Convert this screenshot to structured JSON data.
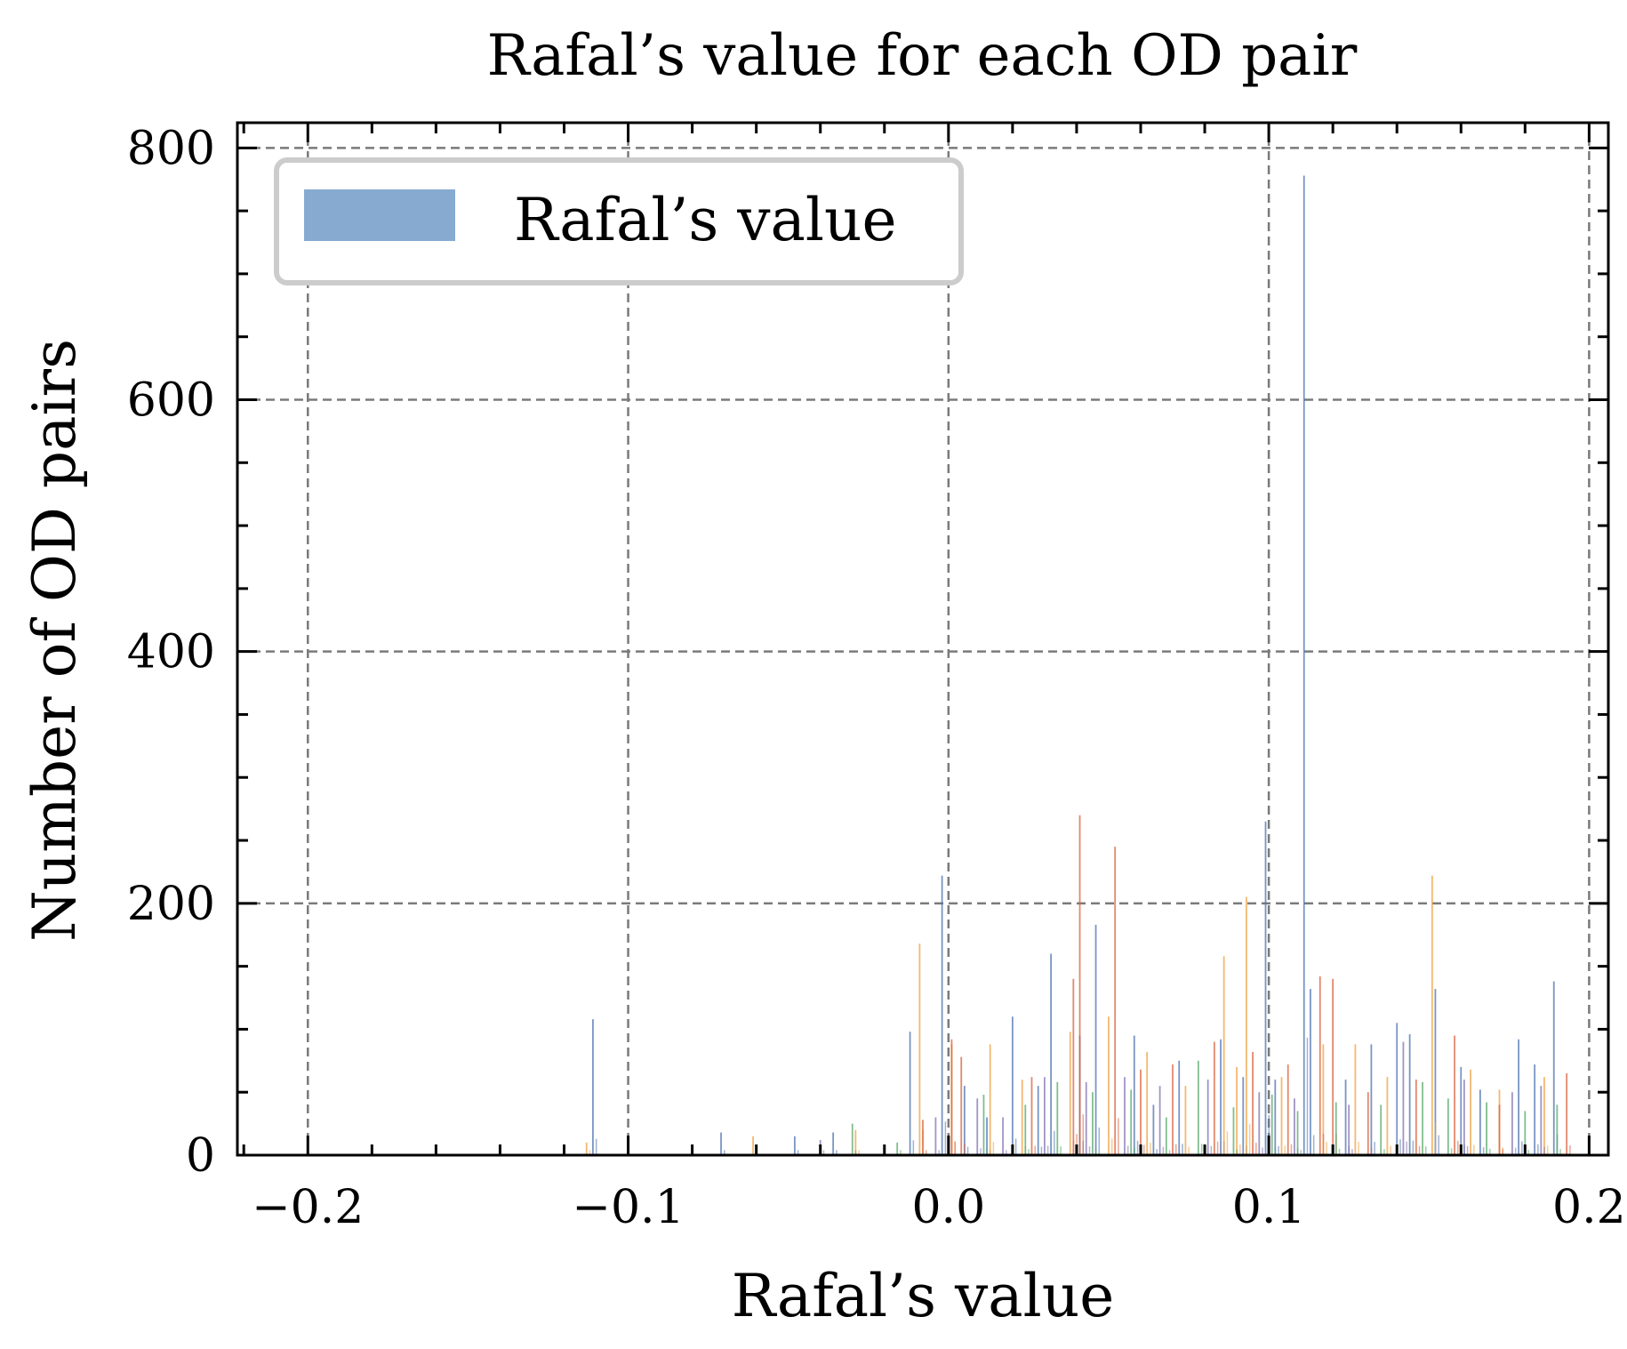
{
  "chart_data": {
    "type": "bar",
    "title": "Rafal’s value for each OD pair",
    "xlabel": "Rafal’s value",
    "ylabel": "Number of OD pairs",
    "xlim": [
      -0.222,
      0.206
    ],
    "ylim": [
      0,
      820
    ],
    "xticks": [
      -0.2,
      -0.1,
      0.0,
      0.1,
      0.2
    ],
    "xtick_labels": [
      "−0.2",
      "−0.1",
      "0.0",
      "0.1",
      "0.2"
    ],
    "yticks": [
      0,
      200,
      400,
      600,
      800
    ],
    "ytick_labels": [
      "0",
      "200",
      "400",
      "600",
      "800"
    ],
    "grid": true,
    "legend": {
      "position": "top-left",
      "entries": [
        "Rafal’s value"
      ]
    },
    "colors": {
      "blue": "#4C72B0",
      "orange": "#F0A040",
      "red": "#D9603B",
      "green": "#55A868",
      "purple": "#8172B2",
      "legend_blue": "#86AAD0",
      "grid": "#7a7a7a"
    },
    "series": [
      {
        "name": "Rafal’s value",
        "color": "#4C72B0",
        "x": [
          -0.111,
          -0.071,
          -0.048,
          -0.036,
          -0.012,
          -0.002,
          0.005,
          0.012,
          0.02,
          0.028,
          0.032,
          0.041,
          0.046,
          0.058,
          0.064,
          0.072,
          0.085,
          0.092,
          0.099,
          0.102,
          0.111,
          0.113,
          0.124,
          0.132,
          0.14,
          0.144,
          0.152,
          0.16,
          0.166,
          0.178,
          0.183,
          0.189
        ],
        "values": [
          108,
          18,
          15,
          18,
          98,
          222,
          55,
          30,
          110,
          55,
          160,
          95,
          183,
          95,
          40,
          75,
          92,
          62,
          265,
          60,
          778,
          132,
          60,
          88,
          105,
          96,
          132,
          70,
          52,
          92,
          72,
          138
        ]
      },
      {
        "color": "#F0A040",
        "x": [
          -0.113,
          -0.061,
          -0.029,
          -0.009,
          0.001,
          0.013,
          0.023,
          0.038,
          0.05,
          0.062,
          0.074,
          0.086,
          0.09,
          0.093,
          0.104,
          0.117,
          0.127,
          0.137,
          0.151,
          0.163,
          0.172,
          0.186
        ],
        "values": [
          10,
          15,
          20,
          168,
          88,
          88,
          60,
          98,
          110,
          82,
          55,
          158,
          70,
          205,
          62,
          88,
          88,
          62,
          222,
          68,
          52,
          62
        ]
      },
      {
        "color": "#D9603B",
        "x": [
          -0.008,
          0.001,
          0.004,
          0.026,
          0.039,
          0.041,
          0.052,
          0.06,
          0.07,
          0.083,
          0.095,
          0.106,
          0.116,
          0.12,
          0.131,
          0.146,
          0.158,
          0.172,
          0.193
        ],
        "values": [
          28,
          92,
          78,
          62,
          140,
          270,
          245,
          68,
          72,
          90,
          82,
          72,
          142,
          140,
          50,
          60,
          95,
          40,
          65
        ]
      },
      {
        "color": "#55A868",
        "x": [
          -0.03,
          -0.016,
          0.011,
          0.024,
          0.034,
          0.045,
          0.057,
          0.068,
          0.078,
          0.089,
          0.101,
          0.109,
          0.121,
          0.135,
          0.148,
          0.156,
          0.168,
          0.18,
          0.19
        ],
        "values": [
          25,
          10,
          48,
          40,
          58,
          50,
          52,
          30,
          75,
          38,
          48,
          35,
          42,
          40,
          58,
          45,
          42,
          35,
          40
        ]
      },
      {
        "color": "#8172B2",
        "x": [
          -0.04,
          -0.004,
          0.009,
          0.017,
          0.03,
          0.043,
          0.055,
          0.066,
          0.081,
          0.097,
          0.108,
          0.125,
          0.142,
          0.161,
          0.176,
          0.185
        ],
        "values": [
          12,
          30,
          45,
          30,
          62,
          58,
          62,
          55,
          60,
          50,
          45,
          40,
          90,
          60,
          50,
          55
        ]
      }
    ]
  }
}
